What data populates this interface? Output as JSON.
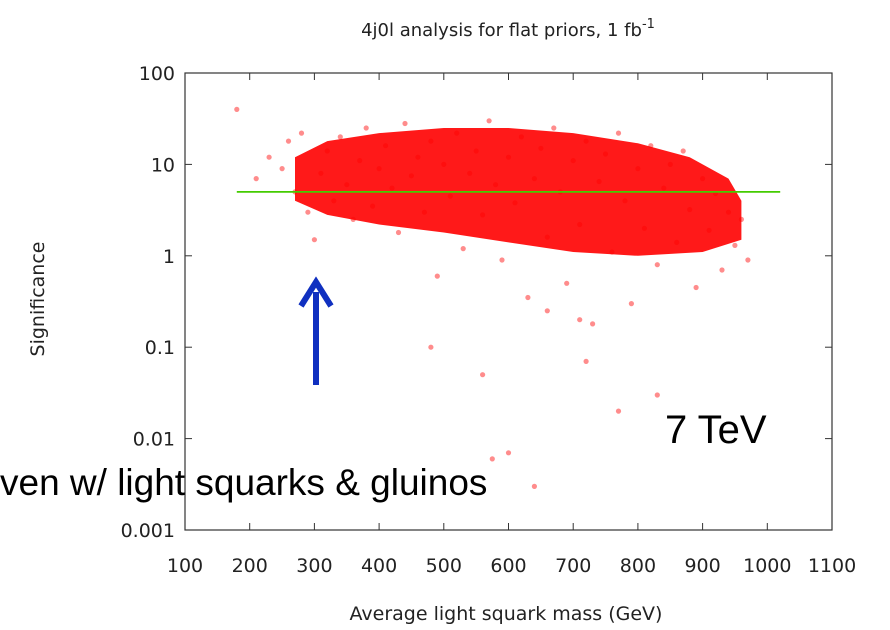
{
  "chart_data": {
    "type": "scatter",
    "title": "4j0l analysis for flat priors, 1 fb",
    "title_superscript": "-1",
    "xlabel": "Average light squark mass (GeV)",
    "ylabel": "Significance",
    "xlim": [
      100,
      1100
    ],
    "ylim": [
      0.001,
      100
    ],
    "yscale": "log",
    "x_ticks": [
      "100",
      "200",
      "300",
      "400",
      "500",
      "600",
      "700",
      "800",
      "900",
      "1000",
      "1100"
    ],
    "y_ticks": [
      "0.001",
      "0.01",
      "0.1",
      "1",
      "10",
      "100"
    ],
    "point_color": "#ff0000",
    "series": [
      {
        "type": "scatter",
        "points": [
          [
            180,
            40
          ],
          [
            210,
            7
          ],
          [
            230,
            12
          ],
          [
            250,
            9
          ],
          [
            260,
            18
          ],
          [
            270,
            5
          ],
          [
            280,
            22
          ],
          [
            290,
            3
          ],
          [
            300,
            1.5
          ],
          [
            310,
            8
          ],
          [
            320,
            14
          ],
          [
            330,
            4
          ],
          [
            340,
            20
          ],
          [
            350,
            6
          ],
          [
            360,
            2.5
          ],
          [
            370,
            11
          ],
          [
            380,
            25
          ],
          [
            390,
            3.5
          ],
          [
            400,
            9
          ],
          [
            410,
            16
          ],
          [
            420,
            5.5
          ],
          [
            430,
            1.8
          ],
          [
            440,
            28
          ],
          [
            450,
            7.5
          ],
          [
            460,
            12
          ],
          [
            470,
            3
          ],
          [
            480,
            18
          ],
          [
            490,
            0.6
          ],
          [
            500,
            10
          ],
          [
            510,
            4.5
          ],
          [
            520,
            22
          ],
          [
            530,
            1.2
          ],
          [
            540,
            8
          ],
          [
            550,
            14
          ],
          [
            560,
            2.8
          ],
          [
            570,
            30
          ],
          [
            580,
            6
          ],
          [
            590,
            0.9
          ],
          [
            600,
            12
          ],
          [
            610,
            3.8
          ],
          [
            620,
            20
          ],
          [
            630,
            0.35
          ],
          [
            640,
            7
          ],
          [
            650,
            15
          ],
          [
            660,
            1.6
          ],
          [
            670,
            25
          ],
          [
            680,
            5
          ],
          [
            690,
            0.5
          ],
          [
            700,
            11
          ],
          [
            710,
            2.2
          ],
          [
            720,
            18
          ],
          [
            730,
            0.18
          ],
          [
            740,
            6.5
          ],
          [
            750,
            13
          ],
          [
            760,
            1.1
          ],
          [
            770,
            22
          ],
          [
            780,
            4
          ],
          [
            790,
            0.3
          ],
          [
            800,
            9
          ],
          [
            810,
            2
          ],
          [
            820,
            16
          ],
          [
            830,
            0.8
          ],
          [
            840,
            5.5
          ],
          [
            850,
            10
          ],
          [
            860,
            1.4
          ],
          [
            870,
            14
          ],
          [
            880,
            3.2
          ],
          [
            890,
            0.45
          ],
          [
            900,
            7
          ],
          [
            910,
            1.9
          ],
          [
            920,
            4.8
          ],
          [
            930,
            0.7
          ],
          [
            940,
            3
          ],
          [
            950,
            1.3
          ],
          [
            960,
            2.5
          ],
          [
            970,
            0.9
          ],
          [
            575,
            0.006
          ],
          [
            600,
            0.007
          ],
          [
            640,
            0.003
          ],
          [
            560,
            0.05
          ],
          [
            720,
            0.07
          ],
          [
            770,
            0.02
          ],
          [
            830,
            0.03
          ],
          [
            480,
            0.1
          ],
          [
            660,
            0.25
          ],
          [
            710,
            0.2
          ]
        ]
      },
      {
        "type": "line",
        "points": [
          [
            180,
            5
          ],
          [
            1020,
            5
          ]
        ],
        "color": "#44cc00"
      }
    ]
  },
  "annotations": {
    "energy_label": "7 TeV",
    "bottom_caption": "ven w/ light squarks & gluinos",
    "arrow_color": "#1030c0"
  }
}
